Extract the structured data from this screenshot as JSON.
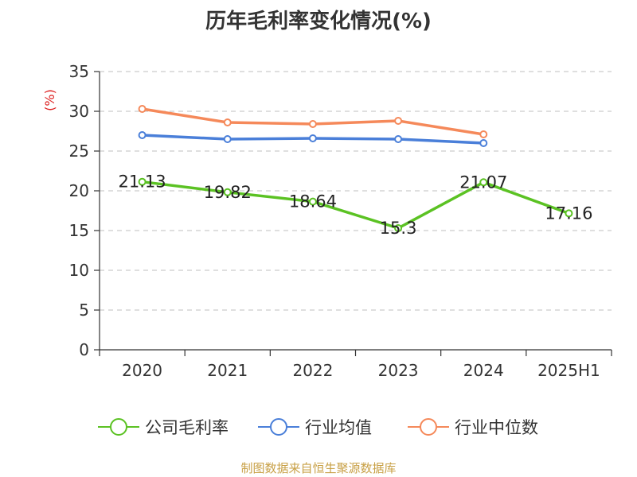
{
  "chart_data": {
    "type": "line",
    "title": "历年毛利率变化情况(%)",
    "ylabel": "(%)",
    "xlabel": "",
    "categories": [
      "2020",
      "2021",
      "2022",
      "2023",
      "2024",
      "2025H1"
    ],
    "yticks": [
      "0",
      "5",
      "10",
      "15",
      "20",
      "25",
      "30",
      "35"
    ],
    "ylim": [
      0,
      35
    ],
    "grid": true,
    "legend_position": "bottom",
    "series": [
      {
        "name": "公司毛利率",
        "color": "#5bc223",
        "values": [
          21.13,
          19.82,
          18.64,
          15.3,
          21.07,
          17.16
        ],
        "labels": [
          "21.13",
          "19.82",
          "18.64",
          "15.3",
          "21.07",
          "17.16"
        ]
      },
      {
        "name": "行业均值",
        "color": "#4a7fd9",
        "values": [
          27.0,
          26.5,
          26.6,
          26.5,
          26.0,
          null
        ]
      },
      {
        "name": "行业中位数",
        "color": "#f5895a",
        "values": [
          30.3,
          28.6,
          28.4,
          28.8,
          27.1,
          null
        ]
      }
    ]
  },
  "footer": {
    "source": "制图数据来自恒生聚源数据库"
  }
}
